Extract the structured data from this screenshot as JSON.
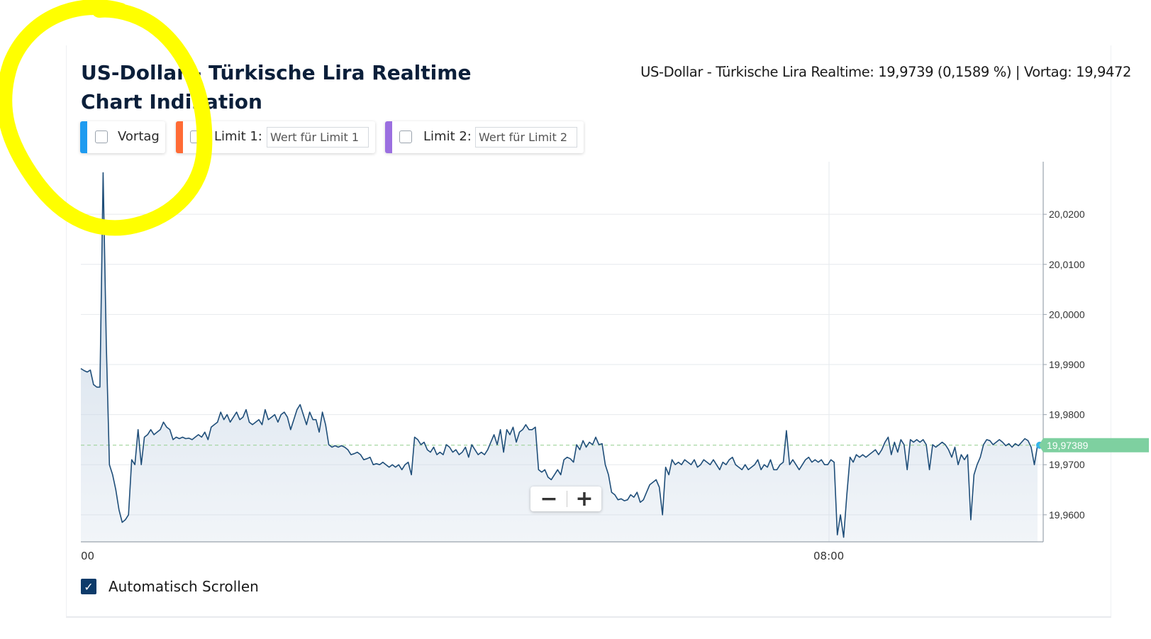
{
  "header": {
    "title": "US-Dollar - Türkische Lira Realtime Chart Indikation",
    "quote": "US-Dollar - Türkische Lira Realtime: 19,9739 (0,1589 %) | Vortag: 19,9472"
  },
  "controls": {
    "vortag_label": "Vortag",
    "limit1_label": "Limit 1:",
    "limit1_placeholder": "Wert für Limit 1",
    "limit2_label": "Limit 2:",
    "limit2_placeholder": "Wert für Limit 2",
    "colors": {
      "vortag": "#1e9bf0",
      "limit1": "#ff6b35",
      "limit2": "#9b6fe0"
    }
  },
  "zoom": {
    "minus": "−",
    "plus": "+"
  },
  "auto_scroll": {
    "label": "Automatisch Scrollen",
    "checked": true,
    "check_glyph": "✓"
  },
  "annotation": {
    "type": "freehand-circle",
    "color": "#ffff00"
  },
  "chart_data": {
    "type": "area",
    "y_tick_labels": [
      "20,0200",
      "20,0100",
      "20,0000",
      "19,9900",
      "19,9800",
      "19,9700",
      "19,9600"
    ],
    "y_ticks": [
      20.02,
      20.01,
      20.0,
      19.99,
      19.98,
      19.97,
      19.96
    ],
    "ylim": [
      19.9546,
      20.0305
    ],
    "x_tick_labels": [
      "00",
      "08:00"
    ],
    "current_value_label": "19,97389",
    "current_value": 19.97389,
    "reference_line": 19.9739,
    "line_color": "#1f4e79",
    "fill_color": "#c9d7e6",
    "marker_color": "#7ed0a0",
    "grid": true,
    "series": [
      {
        "values": [
          19.9892,
          19.9888,
          19.9885,
          19.9889,
          19.986,
          19.9855,
          19.9855,
          20.0283,
          19.994,
          19.97,
          19.968,
          19.965,
          19.961,
          19.9585,
          19.959,
          19.96,
          19.971,
          19.97,
          19.977,
          19.97,
          19.9755,
          19.976,
          19.977,
          19.976,
          19.9765,
          19.977,
          19.9785,
          19.9775,
          19.977,
          19.975,
          19.9755,
          19.9752,
          19.9755,
          19.9752,
          19.9753,
          19.975,
          19.9755,
          19.976,
          19.9755,
          19.9765,
          19.975,
          19.9775,
          19.978,
          19.9785,
          19.9805,
          19.979,
          19.98,
          19.9785,
          19.9795,
          19.9805,
          19.979,
          19.9795,
          19.981,
          19.9785,
          19.978,
          19.9785,
          19.979,
          19.978,
          19.981,
          19.979,
          19.9795,
          19.98,
          19.9785,
          19.98,
          19.9805,
          19.9795,
          19.977,
          19.979,
          19.981,
          19.982,
          19.98,
          19.978,
          19.9805,
          19.979,
          19.979,
          19.9765,
          19.9805,
          19.978,
          19.974,
          19.9735,
          19.9738,
          19.9735,
          19.9738,
          19.9735,
          19.973,
          19.972,
          19.9722,
          19.9725,
          19.972,
          19.971,
          19.9712,
          19.9715,
          19.97,
          19.9702,
          19.97,
          19.9705,
          19.97,
          19.9695,
          19.97,
          19.9695,
          19.97,
          19.969,
          19.97,
          19.9705,
          19.968,
          19.9755,
          19.975,
          19.974,
          19.9745,
          19.973,
          19.9725,
          19.9735,
          19.972,
          19.9725,
          19.972,
          19.974,
          19.9735,
          19.9725,
          19.973,
          19.972,
          19.9725,
          19.9735,
          19.9715,
          19.974,
          19.973,
          19.972,
          19.9725,
          19.972,
          19.973,
          19.9745,
          19.976,
          19.974,
          19.977,
          19.9725,
          19.977,
          19.976,
          19.9775,
          19.9745,
          19.9765,
          19.977,
          19.978,
          19.977,
          19.977,
          19.9775,
          19.969,
          19.9685,
          19.969,
          19.9675,
          19.967,
          19.968,
          19.969,
          19.968,
          19.971,
          19.9715,
          19.9712,
          19.9705,
          19.974,
          19.973,
          19.9748,
          19.9735,
          19.9745,
          19.974,
          19.9755,
          19.974,
          19.9742,
          19.97,
          19.968,
          19.9645,
          19.964,
          19.963,
          19.9632,
          19.9628,
          19.963,
          19.964,
          19.9635,
          19.9645,
          19.9625,
          19.963,
          19.9645,
          19.966,
          19.9665,
          19.967,
          19.9655,
          19.96,
          19.9695,
          19.968,
          19.971,
          19.97,
          19.9705,
          19.97,
          19.971,
          19.9705,
          19.97,
          19.971,
          19.9695,
          19.97,
          19.971,
          19.9705,
          19.97,
          19.971,
          19.97,
          19.969,
          19.9705,
          19.97,
          19.971,
          19.9715,
          19.97,
          19.9695,
          19.969,
          19.97,
          19.969,
          19.9695,
          19.97,
          19.971,
          19.969,
          19.97,
          19.9695,
          19.971,
          19.969,
          19.969,
          19.97,
          19.9705,
          19.9768,
          19.97,
          19.971,
          19.97,
          19.969,
          19.97,
          19.971,
          19.9715,
          19.9705,
          19.971,
          19.9705,
          19.971,
          19.97,
          19.97,
          19.971,
          19.9705,
          19.956,
          19.96,
          19.9555,
          19.964,
          19.9715,
          19.9705,
          19.972,
          19.9715,
          19.972,
          19.9715,
          19.972,
          19.9725,
          19.973,
          19.972,
          19.973,
          19.9745,
          19.9755,
          19.972,
          19.9745,
          19.9725,
          19.975,
          19.974,
          19.969,
          19.975,
          19.9745,
          19.975,
          19.9745,
          19.975,
          19.974,
          19.969,
          19.974,
          19.9735,
          19.974,
          19.9745,
          19.974,
          19.973,
          19.9715,
          19.9735,
          19.97,
          19.972,
          19.971,
          19.972,
          19.959,
          19.968,
          19.97,
          19.9715,
          19.974,
          19.975,
          19.9748,
          19.974,
          19.9745,
          19.975,
          19.9745,
          19.9738,
          19.9742,
          19.9735,
          19.9742,
          19.9738,
          19.9745,
          19.9752,
          19.9748,
          19.9735,
          19.97,
          19.9739
        ]
      }
    ]
  }
}
